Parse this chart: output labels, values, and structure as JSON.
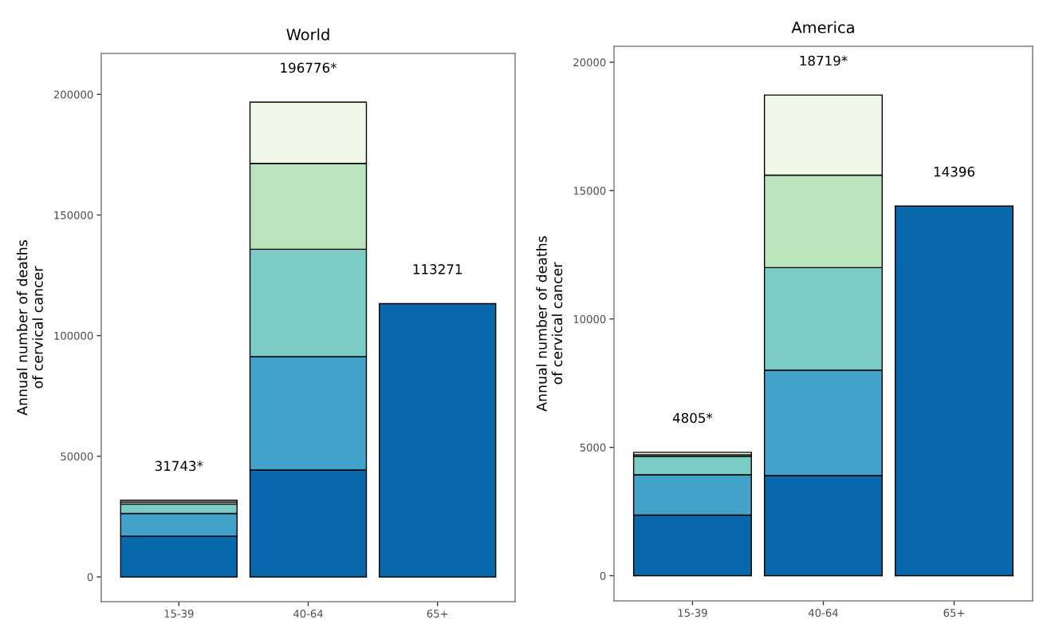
{
  "chart_data": [
    {
      "type": "bar",
      "title": "World",
      "ylabel": "Annual number of deaths\nof cervical cancer",
      "categories": [
        "15-39",
        "40-64",
        "65+"
      ],
      "stacked": true,
      "series": [
        {
          "color": "#0868ac",
          "values": [
            16900,
            44300,
            113271
          ]
        },
        {
          "color": "#43a2ca",
          "values": [
            9400,
            47000,
            null
          ]
        },
        {
          "color": "#7bccc4",
          "values": [
            3900,
            44500,
            null
          ]
        },
        {
          "color": "#bae4bc",
          "values": [
            800,
            35600,
            null
          ]
        },
        {
          "color": "#f0f9e8",
          "values": [
            743,
            25376,
            null
          ]
        }
      ],
      "ylim": [
        -10260,
        216950
      ],
      "yticks": [
        0,
        50000,
        100000,
        150000,
        200000
      ],
      "totals": [
        "31743*",
        "196776*",
        "113271"
      ]
    },
    {
      "type": "bar",
      "title": "America",
      "ylabel": "Annual number of deaths\nof cervical cancer",
      "categories": [
        "15-39",
        "40-64",
        "65+"
      ],
      "stacked": true,
      "series": [
        {
          "color": "#0868ac",
          "values": [
            2360,
            3900,
            14396
          ]
        },
        {
          "color": "#43a2ca",
          "values": [
            1570,
            4100,
            null
          ]
        },
        {
          "color": "#7bccc4",
          "values": [
            720,
            4000,
            null
          ]
        },
        {
          "color": "#bae4bc",
          "values": [
            60,
            3600,
            null
          ]
        },
        {
          "color": "#f0f9e8",
          "values": [
            95,
            3119,
            null
          ]
        }
      ],
      "ylim": [
        -980,
        20620
      ],
      "yticks": [
        0,
        5000,
        10000,
        15000,
        20000
      ],
      "totals": [
        "4805*",
        "18719*",
        "14396"
      ]
    }
  ]
}
